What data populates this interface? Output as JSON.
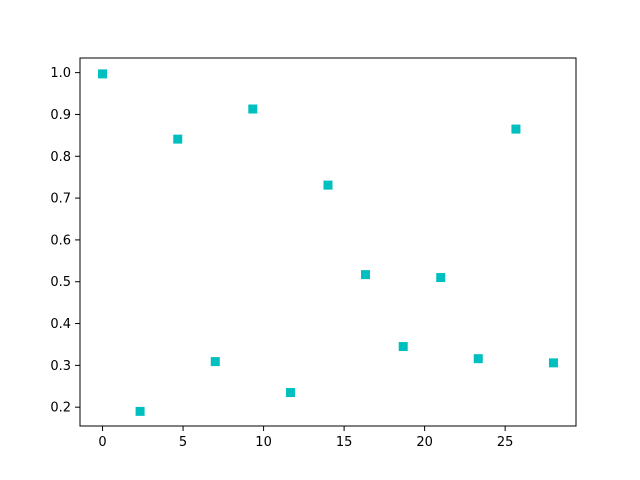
{
  "chart_data": {
    "type": "scatter",
    "title": "",
    "xlabel": "",
    "ylabel": "",
    "xlim": [
      -1.4,
      29.4
    ],
    "ylim": [
      0.155,
      1.035
    ],
    "xticks": [
      0,
      5,
      10,
      15,
      20,
      25
    ],
    "yticks": [
      0.2,
      0.3,
      0.4,
      0.5,
      0.6,
      0.7,
      0.8,
      0.9,
      1.0
    ],
    "grid": false,
    "legend": "none",
    "marker": "square",
    "color": "#00bfbf",
    "series": [
      {
        "points": [
          {
            "x": 0.0,
            "y": 0.997
          },
          {
            "x": 2.33,
            "y": 0.19
          },
          {
            "x": 4.67,
            "y": 0.841
          },
          {
            "x": 7.0,
            "y": 0.309
          },
          {
            "x": 9.33,
            "y": 0.913
          },
          {
            "x": 11.67,
            "y": 0.235
          },
          {
            "x": 14.0,
            "y": 0.731
          },
          {
            "x": 16.33,
            "y": 0.517
          },
          {
            "x": 18.67,
            "y": 0.345
          },
          {
            "x": 21.0,
            "y": 0.51
          },
          {
            "x": 23.33,
            "y": 0.316
          },
          {
            "x": 25.67,
            "y": 0.865
          },
          {
            "x": 28.0,
            "y": 0.306
          }
        ]
      }
    ]
  }
}
